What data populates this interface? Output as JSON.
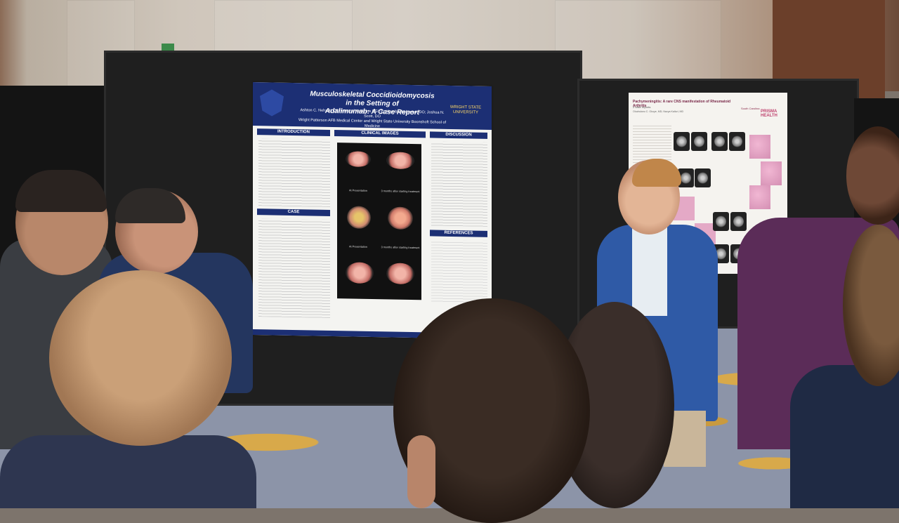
{
  "scene": {
    "description_tags": [
      "poster-session",
      "medical-conference"
    ]
  },
  "poster_main": {
    "title_line1": "Musculoskeletal Coccidioidomycosis in the Setting of",
    "title_line2": "Adalimumab: A Case Report",
    "authors": "Ashton C. Nehzati, DO (Internal Medicine PGY3); Alan Bartholomew, DO; Joshua N. Scott, DO",
    "affiliation": "Wright Patterson AFB Medical Center and Wright State University Boonshoft School of Medicine",
    "institution_logo": "WRIGHT STATE UNIVERSITY",
    "sections": {
      "intro": "INTRODUCTION",
      "clinical_images": "CLINICAL IMAGES",
      "discussion": "DISCUSSION",
      "case": "CASE",
      "references": "REFERENCES"
    },
    "image_labels": {
      "row1_left": "At Presentation",
      "row1_right": "3 months after starting treatment",
      "row2_left": "At Presentation",
      "row2_right": "3 months after starting treatment",
      "row3_left": "At Presentation",
      "row3_right": "3 months after starting treatment"
    }
  },
  "poster_second": {
    "title": "Pachymeningitis: A rare CNS manifestation of Rheumatoid Arthritis",
    "subtitle": "2 case reports",
    "authors": "Oluchukwu C. Okoye, MD; Navya Kalluri, MD",
    "logo_left": "South Carolina",
    "logo_right": "PRISMA HEALTH"
  },
  "colors": {
    "poster_header": "#1c2f74",
    "board": "#1f1f1f",
    "carpet": "#8c94a8"
  }
}
